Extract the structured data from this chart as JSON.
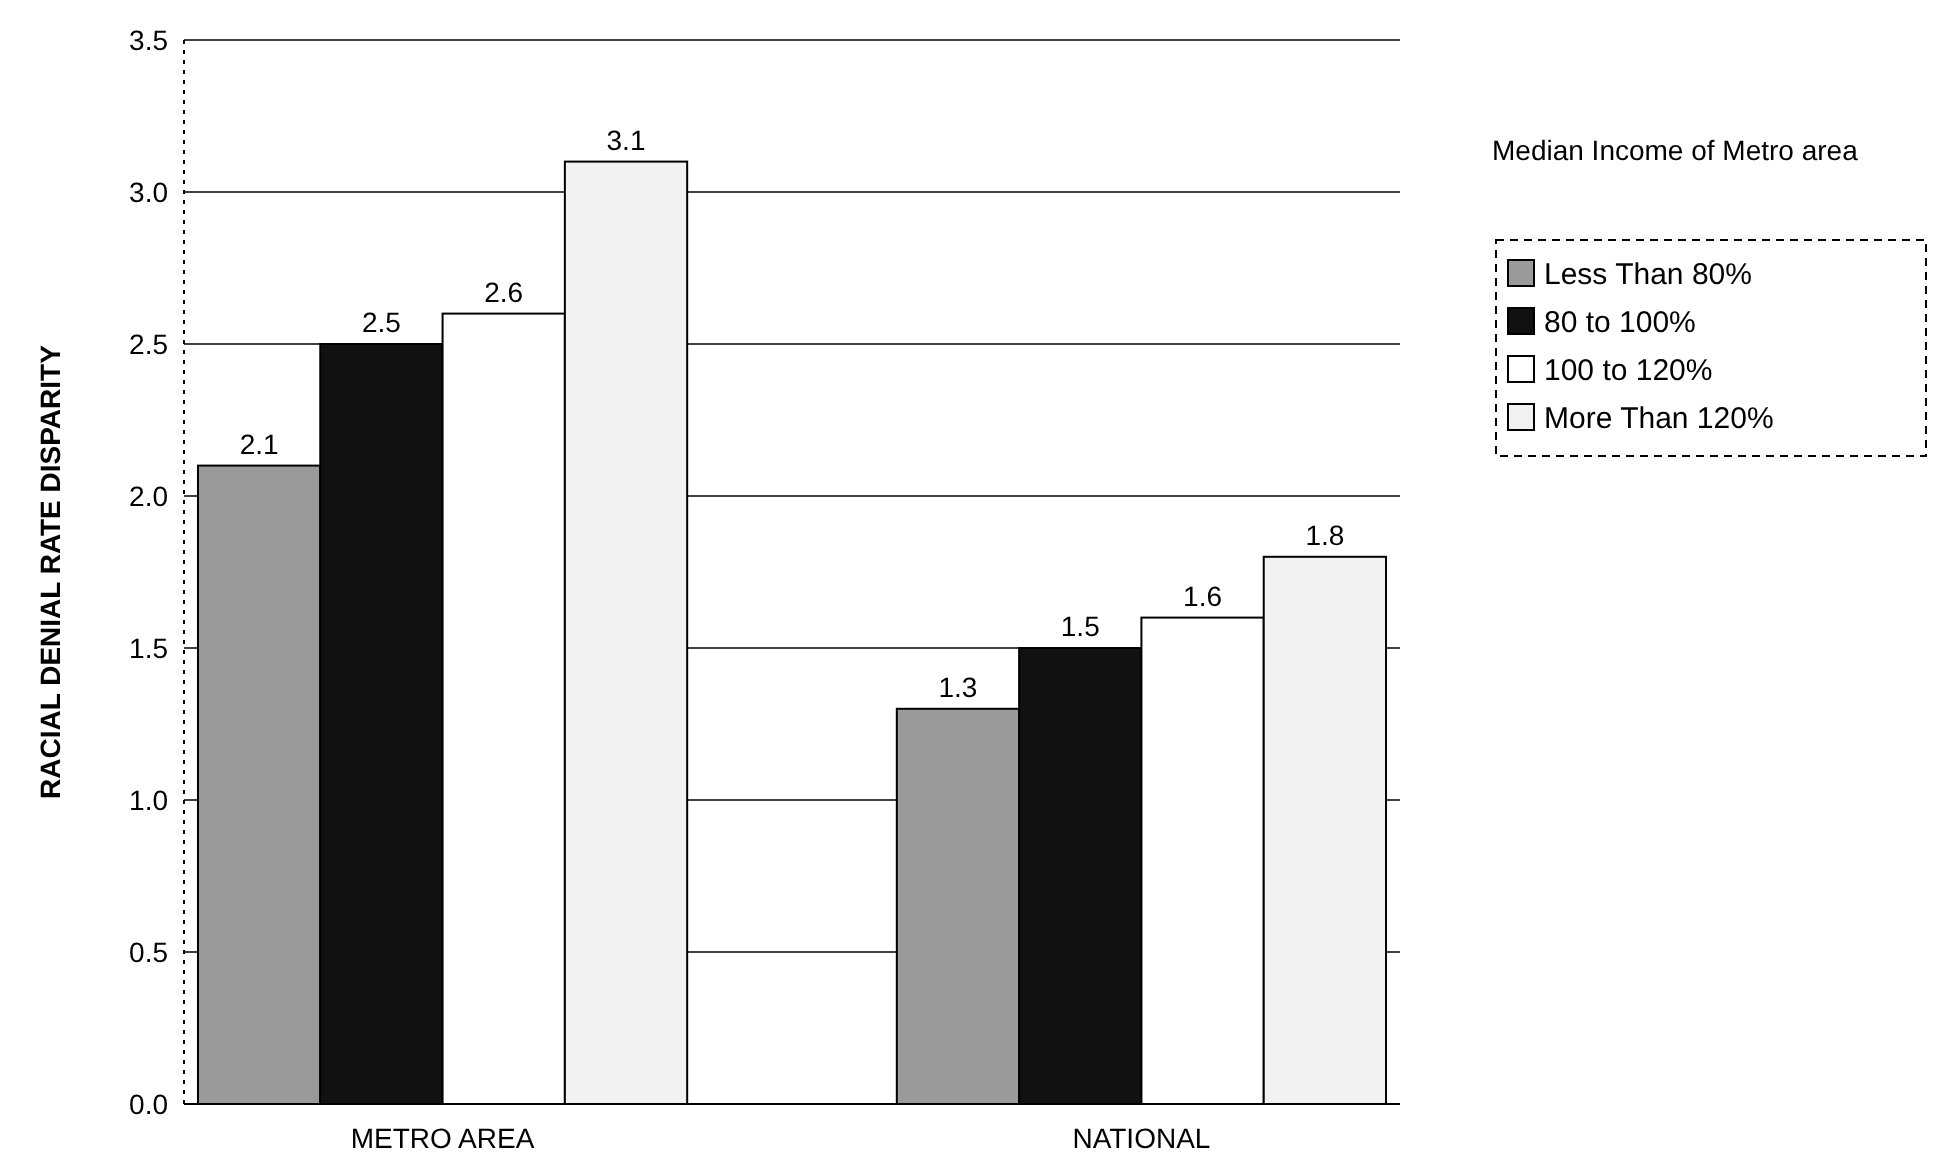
{
  "chart_data": {
    "type": "bar",
    "ylabel": "RACIAL DENIAL RATE DISPARITY",
    "legend_title": "Median Income of Metro area",
    "categories": [
      "METRO AREA",
      "NATIONAL"
    ],
    "series": [
      {
        "name": "Less Than  80%",
        "color": "#9a9a9a",
        "values": [
          2.1,
          1.3
        ]
      },
      {
        "name": "80 to 100%",
        "color": "#111111",
        "values": [
          2.5,
          1.5
        ]
      },
      {
        "name": "100 to 120%",
        "color": "#ffffff",
        "values": [
          2.6,
          1.6
        ]
      },
      {
        "name": "More Than 120%",
        "color": "#f2f2f2",
        "values": [
          3.1,
          1.8
        ]
      }
    ],
    "ylim": [
      0,
      3.5
    ],
    "yticks": [
      {
        "value": 0,
        "label": "0.0"
      },
      {
        "value": 0.5,
        "label": "0.5"
      },
      {
        "value": 1,
        "label": "1.0"
      },
      {
        "value": 1.5,
        "label": "1.5"
      },
      {
        "value": 2,
        "label": "2.0"
      },
      {
        "value": 2.5,
        "label": "2.5"
      },
      {
        "value": 3,
        "label": "3.0"
      },
      {
        "value": 3.5,
        "label": "3.5"
      }
    ],
    "grid": "y",
    "data_labels": true,
    "legend": "right"
  }
}
